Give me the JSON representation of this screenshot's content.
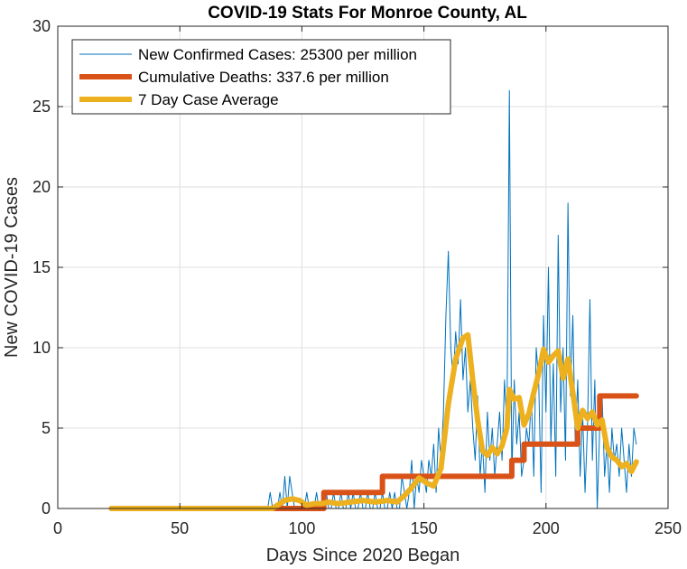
{
  "chart_data": {
    "type": "line",
    "title": "COVID-19 Stats For Monroe County, AL",
    "xlabel": "Days Since 2020 Began",
    "ylabel": "New COVID-19 Cases",
    "xlim": [
      0,
      250
    ],
    "ylim": [
      0,
      30
    ],
    "xticks": [
      0,
      50,
      100,
      150,
      200,
      250
    ],
    "yticks": [
      0,
      5,
      10,
      15,
      20,
      25,
      30
    ],
    "grid": true,
    "legend_position": "top-left",
    "series": [
      {
        "name": "New Confirmed Cases: 25300 per million",
        "color": "#0072bd",
        "points": [
          [
            22,
            0
          ],
          [
            30,
            0
          ],
          [
            40,
            0
          ],
          [
            50,
            0
          ],
          [
            60,
            0
          ],
          [
            70,
            0
          ],
          [
            80,
            0
          ],
          [
            86,
            0
          ],
          [
            87,
            1
          ],
          [
            88,
            0
          ],
          [
            89,
            0
          ],
          [
            90,
            0
          ],
          [
            91,
            1
          ],
          [
            92,
            0
          ],
          [
            93,
            2
          ],
          [
            94,
            0
          ],
          [
            95,
            2
          ],
          [
            96,
            1
          ],
          [
            97,
            0
          ],
          [
            98,
            0
          ],
          [
            99,
            0
          ],
          [
            100,
            0
          ],
          [
            101,
            0
          ],
          [
            102,
            1
          ],
          [
            103,
            0
          ],
          [
            104,
            0
          ],
          [
            105,
            0
          ],
          [
            106,
            1
          ],
          [
            107,
            0
          ],
          [
            108,
            0
          ],
          [
            109,
            0
          ],
          [
            110,
            1
          ],
          [
            111,
            0
          ],
          [
            112,
            0
          ],
          [
            113,
            1
          ],
          [
            114,
            0
          ],
          [
            115,
            0
          ],
          [
            116,
            1
          ],
          [
            117,
            0
          ],
          [
            118,
            0
          ],
          [
            119,
            1
          ],
          [
            120,
            0
          ],
          [
            121,
            1
          ],
          [
            122,
            0
          ],
          [
            123,
            0
          ],
          [
            124,
            1
          ],
          [
            125,
            0
          ],
          [
            126,
            0
          ],
          [
            127,
            1
          ],
          [
            128,
            0
          ],
          [
            129,
            0
          ],
          [
            130,
            1
          ],
          [
            131,
            0
          ],
          [
            132,
            0
          ],
          [
            133,
            1
          ],
          [
            134,
            0
          ],
          [
            135,
            0
          ],
          [
            136,
            1
          ],
          [
            137,
            0
          ],
          [
            138,
            1
          ],
          [
            139,
            0
          ],
          [
            140,
            0
          ],
          [
            141,
            2
          ],
          [
            142,
            1
          ],
          [
            143,
            0
          ],
          [
            144,
            1
          ],
          [
            145,
            3
          ],
          [
            146,
            0
          ],
          [
            147,
            2
          ],
          [
            148,
            1
          ],
          [
            149,
            3
          ],
          [
            150,
            2
          ],
          [
            151,
            1
          ],
          [
            152,
            3
          ],
          [
            153,
            2
          ],
          [
            154,
            4
          ],
          [
            155,
            1
          ],
          [
            156,
            5
          ],
          [
            157,
            3
          ],
          [
            158,
            6
          ],
          [
            159,
            12
          ],
          [
            160,
            16
          ],
          [
            161,
            10
          ],
          [
            162,
            8
          ],
          [
            163,
            11
          ],
          [
            164,
            9
          ],
          [
            165,
            13
          ],
          [
            166,
            8
          ],
          [
            167,
            10
          ],
          [
            168,
            6
          ],
          [
            169,
            8
          ],
          [
            170,
            5
          ],
          [
            171,
            3
          ],
          [
            172,
            7
          ],
          [
            173,
            2
          ],
          [
            174,
            4
          ],
          [
            175,
            1
          ],
          [
            176,
            6
          ],
          [
            177,
            3
          ],
          [
            178,
            5
          ],
          [
            179,
            2
          ],
          [
            180,
            4
          ],
          [
            181,
            6
          ],
          [
            182,
            3
          ],
          [
            183,
            8
          ],
          [
            184,
            5
          ],
          [
            185,
            26
          ],
          [
            186,
            2
          ],
          [
            187,
            8
          ],
          [
            188,
            4
          ],
          [
            189,
            6
          ],
          [
            190,
            2
          ],
          [
            191,
            3
          ],
          [
            192,
            5
          ],
          [
            193,
            4
          ],
          [
            194,
            7
          ],
          [
            195,
            2
          ],
          [
            196,
            10
          ],
          [
            197,
            8
          ],
          [
            198,
            1
          ],
          [
            199,
            12
          ],
          [
            200,
            6
          ],
          [
            201,
            15
          ],
          [
            202,
            4
          ],
          [
            203,
            9
          ],
          [
            204,
            2
          ],
          [
            205,
            17
          ],
          [
            206,
            6
          ],
          [
            207,
            10
          ],
          [
            208,
            3
          ],
          [
            209,
            19
          ],
          [
            210,
            7
          ],
          [
            211,
            12
          ],
          [
            212,
            4
          ],
          [
            213,
            8
          ],
          [
            214,
            2
          ],
          [
            215,
            6
          ],
          [
            216,
            1
          ],
          [
            217,
            5
          ],
          [
            218,
            13
          ],
          [
            219,
            3
          ],
          [
            220,
            8
          ],
          [
            221,
            0
          ],
          [
            222,
            5
          ],
          [
            223,
            7
          ],
          [
            224,
            2
          ],
          [
            225,
            4
          ],
          [
            226,
            1
          ],
          [
            227,
            5
          ],
          [
            228,
            3
          ],
          [
            229,
            4
          ],
          [
            230,
            2
          ],
          [
            231,
            5
          ],
          [
            232,
            3
          ],
          [
            233,
            1
          ],
          [
            234,
            4
          ],
          [
            235,
            2
          ],
          [
            236,
            5
          ],
          [
            237,
            4
          ]
        ]
      },
      {
        "name": "Cumulative Deaths: 337.6 per million",
        "color": "#d95319",
        "points": [
          [
            22,
            0
          ],
          [
            109,
            0
          ],
          [
            109,
            1
          ],
          [
            133,
            1
          ],
          [
            133,
            2
          ],
          [
            186,
            2
          ],
          [
            186,
            3
          ],
          [
            191,
            3
          ],
          [
            191,
            4
          ],
          [
            213,
            4
          ],
          [
            213,
            5
          ],
          [
            222,
            5
          ],
          [
            222,
            7
          ],
          [
            237,
            7
          ]
        ]
      },
      {
        "name": "7 Day Case Average",
        "color": "#edb120",
        "points": [
          [
            22,
            0
          ],
          [
            88,
            0
          ],
          [
            90,
            0.2
          ],
          [
            93,
            0.5
          ],
          [
            96,
            0.6
          ],
          [
            99,
            0.5
          ],
          [
            102,
            0.2
          ],
          [
            105,
            0.3
          ],
          [
            108,
            0.3
          ],
          [
            111,
            0.4
          ],
          [
            115,
            0.3
          ],
          [
            120,
            0.4
          ],
          [
            125,
            0.5
          ],
          [
            130,
            0.4
          ],
          [
            135,
            0.5
          ],
          [
            139,
            0.4
          ],
          [
            142,
            0.8
          ],
          [
            145,
            1.3
          ],
          [
            148,
            1.9
          ],
          [
            151,
            1.6
          ],
          [
            154,
            1.4
          ],
          [
            157,
            2.5
          ],
          [
            160,
            6.5
          ],
          [
            163,
            9.3
          ],
          [
            166,
            10.6
          ],
          [
            168,
            10.8
          ],
          [
            170,
            8.0
          ],
          [
            172,
            5.5
          ],
          [
            174,
            3.6
          ],
          [
            176,
            3.3
          ],
          [
            178,
            3.8
          ],
          [
            180,
            3.4
          ],
          [
            182,
            3.9
          ],
          [
            184,
            5.0
          ],
          [
            185,
            7.4
          ],
          [
            187,
            6.8
          ],
          [
            189,
            6.9
          ],
          [
            191,
            5.2
          ],
          [
            193,
            5.9
          ],
          [
            195,
            7.2
          ],
          [
            197,
            8.4
          ],
          [
            199,
            9.9
          ],
          [
            201,
            9.1
          ],
          [
            203,
            9.5
          ],
          [
            205,
            9.8
          ],
          [
            207,
            8.1
          ],
          [
            209,
            9.3
          ],
          [
            211,
            7.2
          ],
          [
            213,
            5.0
          ],
          [
            215,
            6.1
          ],
          [
            217,
            5.6
          ],
          [
            219,
            6.0
          ],
          [
            221,
            5.2
          ],
          [
            223,
            5.5
          ],
          [
            225,
            3.8
          ],
          [
            227,
            3.2
          ],
          [
            229,
            3.0
          ],
          [
            231,
            2.6
          ],
          [
            233,
            2.8
          ],
          [
            235,
            2.3
          ],
          [
            237,
            2.9
          ]
        ]
      }
    ]
  }
}
